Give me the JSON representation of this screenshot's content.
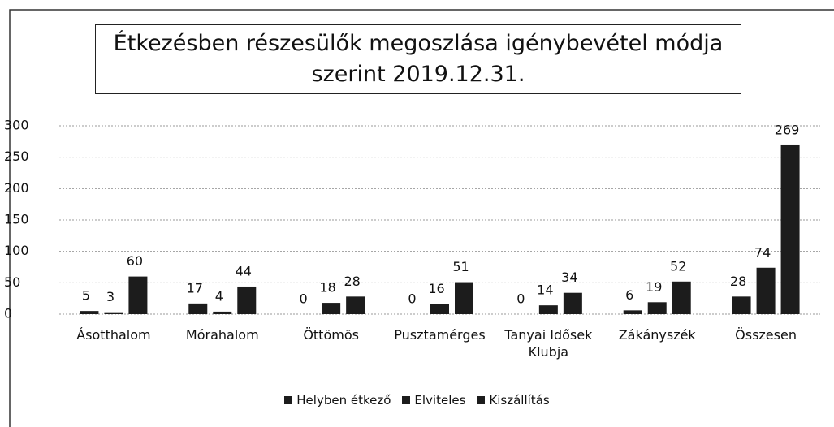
{
  "chart_data": {
    "type": "bar",
    "title": "Étkezésben részesülők megoszlása igénybevétel módja szerint   2019.12.31.",
    "categories": [
      "Ásotthalom",
      "Mórahalom",
      "Öttömös",
      "Pusztamérges",
      "Tanyai Idősek Klubja",
      "Zákányszék",
      "Összesen"
    ],
    "series": [
      {
        "name": "Helyben étkező",
        "color": "#1c1c1c",
        "values": [
          5,
          17,
          0,
          0,
          0,
          6,
          28
        ]
      },
      {
        "name": "Elviteles",
        "color": "#1c1c1c",
        "values": [
          3,
          4,
          18,
          16,
          14,
          19,
          74
        ]
      },
      {
        "name": "Kiszállítás",
        "color": "#1c1c1c",
        "values": [
          60,
          44,
          28,
          51,
          34,
          52,
          269
        ]
      }
    ],
    "ylim": [
      0,
      300
    ],
    "yticks": [
      0,
      50,
      100,
      150,
      200,
      250,
      300
    ],
    "grid": true,
    "legend": "bottom"
  }
}
